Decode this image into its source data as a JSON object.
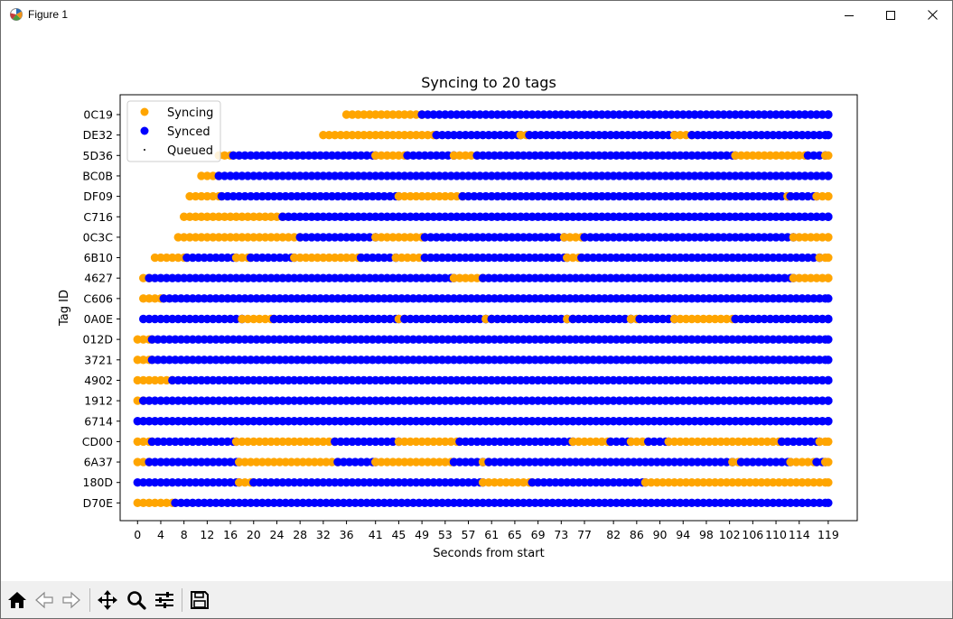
{
  "window": {
    "title": "Figure 1"
  },
  "toolbar": {
    "buttons": [
      {
        "name": "home-icon",
        "tooltip": "Reset original view"
      },
      {
        "name": "back-arrow-icon",
        "tooltip": "Back"
      },
      {
        "name": "forward-arrow-icon",
        "tooltip": "Forward"
      },
      {
        "name": "pan-move-icon",
        "tooltip": "Pan"
      },
      {
        "name": "zoom-magnifier-icon",
        "tooltip": "Zoom"
      },
      {
        "name": "configure-sliders-icon",
        "tooltip": "Configure subplots"
      },
      {
        "name": "save-floppy-icon",
        "tooltip": "Save"
      }
    ]
  },
  "colors": {
    "syncing": "#ffa500",
    "synced": "#0000ff",
    "queued": "#000000"
  },
  "chart_data": {
    "type": "scatter",
    "title": "Syncing to 20 tags",
    "xlabel": "Seconds from start",
    "ylabel": "Tag ID",
    "legend": {
      "position": "upper-left",
      "entries": [
        {
          "label": "Syncing",
          "color": "#ffa500",
          "marker": "circle"
        },
        {
          "label": "Synced",
          "color": "#0000ff",
          "marker": "circle"
        },
        {
          "label": "Queued",
          "color": "#000000",
          "marker": "dot"
        }
      ]
    },
    "x_ticks": [
      "0",
      "4",
      "8",
      "12",
      "16",
      "20",
      "24",
      "28",
      "32",
      "36",
      "41",
      "45",
      "49",
      "53",
      "57",
      "61",
      "65",
      "69",
      "73",
      "77",
      "82",
      "86",
      "90",
      "94",
      "98",
      "102",
      "106",
      "110",
      "114",
      "119"
    ],
    "x_tick_values": [
      0,
      4,
      8,
      12,
      16,
      20,
      24,
      28,
      32,
      36,
      41,
      45,
      49,
      53,
      57,
      61,
      65,
      69,
      73,
      77,
      82,
      86,
      90,
      94,
      98,
      102,
      106,
      110,
      114,
      119
    ],
    "xlim": [
      -3,
      124
    ],
    "tags": [
      "0C19",
      "DE32",
      "5D36",
      "BC0B",
      "DF09",
      "C716",
      "0C3C",
      "6B10",
      "4627",
      "C606",
      "0A0E",
      "012D",
      "3721",
      "4902",
      "1912",
      "6714",
      "CD00",
      "6A37",
      "180D",
      "D70E"
    ],
    "series": [
      {
        "tag": "0C19",
        "segments": [
          [
            "Syncing",
            36,
            49
          ],
          [
            "Synced",
            49,
            119
          ]
        ]
      },
      {
        "tag": "DE32",
        "segments": [
          [
            "Syncing",
            32,
            51.5
          ],
          [
            "Synced",
            51.5,
            66
          ],
          [
            "Syncing",
            66,
            67.5
          ],
          [
            "Synced",
            67.5,
            92.5
          ],
          [
            "Syncing",
            92.5,
            95.5
          ],
          [
            "Synced",
            95.5,
            119
          ]
        ]
      },
      {
        "tag": "5D36",
        "segments": [
          [
            "Syncing",
            14,
            16.5
          ],
          [
            "Synced",
            16.5,
            41
          ],
          [
            "Syncing",
            41,
            46.5
          ],
          [
            "Synced",
            46.5,
            54.5
          ],
          [
            "Syncing",
            54.5,
            58.5
          ],
          [
            "Synced",
            58.5,
            103
          ],
          [
            "Syncing",
            103,
            115.5
          ],
          [
            "Synced",
            115.5,
            118.5
          ],
          [
            "Syncing",
            118.5,
            119
          ]
        ]
      },
      {
        "tag": "BC0B",
        "segments": [
          [
            "Syncing",
            11,
            14
          ],
          [
            "Synced",
            14,
            119
          ]
        ]
      },
      {
        "tag": "DF09",
        "segments": [
          [
            "Syncing",
            9,
            14.5
          ],
          [
            "Synced",
            14.5,
            45
          ],
          [
            "Syncing",
            45,
            56
          ],
          [
            "Synced",
            56,
            112
          ],
          [
            "Syncing",
            112,
            112.5
          ],
          [
            "Synced",
            112.5,
            117
          ],
          [
            "Syncing",
            117,
            119
          ]
        ]
      },
      {
        "tag": "C716",
        "segments": [
          [
            "Syncing",
            8,
            25
          ],
          [
            "Synced",
            25,
            119
          ]
        ]
      },
      {
        "tag": "0C3C",
        "segments": [
          [
            "Syncing",
            7,
            28
          ],
          [
            "Synced",
            28,
            41
          ],
          [
            "Syncing",
            41,
            49.5
          ],
          [
            "Synced",
            49.5,
            73.5
          ],
          [
            "Syncing",
            73.5,
            77
          ],
          [
            "Synced",
            77,
            113
          ],
          [
            "Syncing",
            113,
            119
          ]
        ]
      },
      {
        "tag": "6B10",
        "segments": [
          [
            "Syncing",
            3,
            8.5
          ],
          [
            "Synced",
            8.5,
            17
          ],
          [
            "Syncing",
            17,
            19.5
          ],
          [
            "Synced",
            19.5,
            27
          ],
          [
            "Syncing",
            27,
            38.5
          ],
          [
            "Synced",
            38.5,
            44.5
          ],
          [
            "Syncing",
            44.5,
            49.5
          ],
          [
            "Synced",
            49.5,
            74
          ],
          [
            "Syncing",
            74,
            76.5
          ],
          [
            "Synced",
            76.5,
            117.5
          ],
          [
            "Syncing",
            117.5,
            119
          ]
        ]
      },
      {
        "tag": "4627",
        "segments": [
          [
            "Syncing",
            1,
            2
          ],
          [
            "Synced",
            2,
            54.5
          ],
          [
            "Syncing",
            54.5,
            59.5
          ],
          [
            "Synced",
            59.5,
            113
          ],
          [
            "Syncing",
            113,
            119
          ]
        ]
      },
      {
        "tag": "C606",
        "segments": [
          [
            "Syncing",
            1,
            4.5
          ],
          [
            "Synced",
            4.5,
            119
          ]
        ]
      },
      {
        "tag": "0A0E",
        "segments": [
          [
            "Synced",
            1,
            18
          ],
          [
            "Syncing",
            18,
            23.5
          ],
          [
            "Synced",
            23.5,
            45
          ],
          [
            "Syncing",
            45,
            46
          ],
          [
            "Synced",
            46,
            60
          ],
          [
            "Syncing",
            60,
            61
          ],
          [
            "Synced",
            61,
            74
          ],
          [
            "Syncing",
            74,
            75
          ],
          [
            "Synced",
            75,
            85
          ],
          [
            "Syncing",
            85,
            86.5
          ],
          [
            "Synced",
            86.5,
            92.5
          ],
          [
            "Syncing",
            92.5,
            103
          ],
          [
            "Synced",
            103,
            119
          ]
        ]
      },
      {
        "tag": "012D",
        "segments": [
          [
            "Syncing",
            0,
            2.5
          ],
          [
            "Synced",
            2.5,
            119
          ]
        ]
      },
      {
        "tag": "3721",
        "segments": [
          [
            "Syncing",
            0,
            2.5
          ],
          [
            "Synced",
            2.5,
            119
          ]
        ]
      },
      {
        "tag": "4902",
        "segments": [
          [
            "Syncing",
            0,
            6
          ],
          [
            "Synced",
            6,
            119
          ]
        ]
      },
      {
        "tag": "1912",
        "segments": [
          [
            "Syncing",
            0,
            1
          ],
          [
            "Synced",
            1,
            119
          ]
        ]
      },
      {
        "tag": "6714",
        "segments": [
          [
            "Synced",
            0,
            119
          ]
        ]
      },
      {
        "tag": "CD00",
        "segments": [
          [
            "Syncing",
            0,
            2.5
          ],
          [
            "Synced",
            2.5,
            17
          ],
          [
            "Syncing",
            17,
            34
          ],
          [
            "Synced",
            34,
            45
          ],
          [
            "Syncing",
            45,
            55.5
          ],
          [
            "Synced",
            55.5,
            75
          ],
          [
            "Syncing",
            75,
            81.5
          ],
          [
            "Synced",
            81.5,
            85
          ],
          [
            "Syncing",
            85,
            88
          ],
          [
            "Synced",
            88,
            91.5
          ],
          [
            "Syncing",
            91.5,
            111
          ],
          [
            "Synced",
            111,
            117.5
          ],
          [
            "Syncing",
            117.5,
            119
          ]
        ]
      },
      {
        "tag": "6A37",
        "segments": [
          [
            "Syncing",
            0,
            2
          ],
          [
            "Synced",
            2,
            17.5
          ],
          [
            "Syncing",
            17.5,
            34.5
          ],
          [
            "Synced",
            34.5,
            41
          ],
          [
            "Syncing",
            41,
            54.5
          ],
          [
            "Synced",
            54.5,
            59.5
          ],
          [
            "Syncing",
            59.5,
            60.5
          ],
          [
            "Synced",
            60.5,
            102.5
          ],
          [
            "Syncing",
            102.5,
            104
          ],
          [
            "Synced",
            104,
            112.5
          ],
          [
            "Syncing",
            112.5,
            117
          ],
          [
            "Synced",
            117,
            118.5
          ],
          [
            "Syncing",
            118.5,
            119
          ]
        ]
      },
      {
        "tag": "180D",
        "segments": [
          [
            "Synced",
            0,
            17.5
          ],
          [
            "Syncing",
            17.5,
            20
          ],
          [
            "Synced",
            20,
            59.5
          ],
          [
            "Syncing",
            59.5,
            68
          ],
          [
            "Synced",
            68,
            87.5
          ],
          [
            "Syncing",
            87.5,
            119
          ]
        ]
      },
      {
        "tag": "D70E",
        "segments": [
          [
            "Syncing",
            0,
            6.5
          ],
          [
            "Synced",
            6.5,
            119
          ]
        ]
      }
    ]
  }
}
